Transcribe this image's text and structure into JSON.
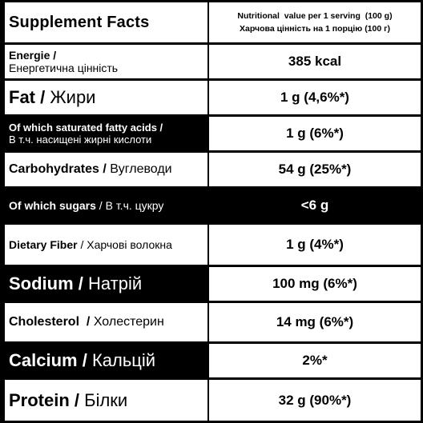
{
  "header": {
    "title": "Supplement Facts",
    "line1": "Nutritional  value per 1 serving  (100 g)",
    "line2": "Харчова цінність на 1 порцію (100 г)"
  },
  "rows": [
    {
      "en": "Energie /",
      "ua": "Енергетична цінність",
      "value": "385 kcal"
    },
    {
      "en": "Fat",
      "sep": " / ",
      "ua": "Жири",
      "value": "1 g (4,6%*)"
    },
    {
      "en": "Of which saturated fatty acids /",
      "ua": "В т.ч. насищені жирні кислоти",
      "value": "1 g (6%*)"
    },
    {
      "en": "Carbohydrates",
      "sep": " / ",
      "ua": "Вуглеводи",
      "value": "54 g (25%*)"
    },
    {
      "en": "Of which sugars",
      "sep": " / ",
      "ua": "В т.ч. цукру",
      "value": "<6 g"
    },
    {
      "en": "Dietary Fiber",
      "sep": " / ",
      "ua": "Харчові волокна",
      "value": "1 g (4%*)"
    },
    {
      "en": "Sodium",
      "sep": " / ",
      "ua": "Натрій",
      "value": "100 mg (6%*)"
    },
    {
      "en": "Cholesterol ",
      "sep": " / ",
      "ua": "Холестерин",
      "value": "14 mg (6%*)"
    },
    {
      "en": "Calcium",
      "sep": " / ",
      "ua": "Кальцій",
      "value": "2%*"
    },
    {
      "en": "Protein",
      "sep": " / ",
      "ua": "Білки",
      "value": "32 g (90%*)"
    }
  ]
}
